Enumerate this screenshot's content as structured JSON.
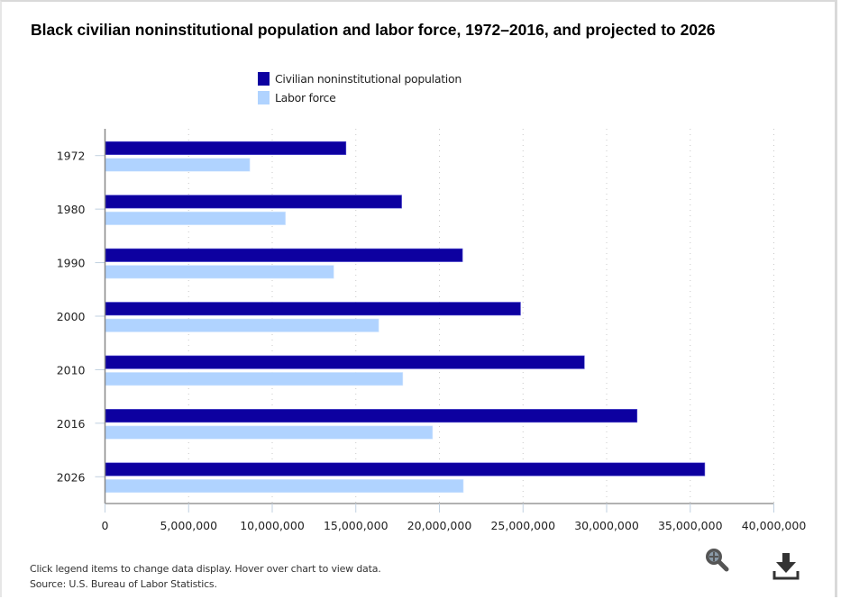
{
  "chart_data": {
    "type": "bar",
    "orientation": "horizontal",
    "title": "Black civilian noninstitutional population and labor force, 1972–2016, and projected to 2026",
    "categories": [
      "1972",
      "1980",
      "1990",
      "2000",
      "2010",
      "2016",
      "2026"
    ],
    "series": [
      {
        "name": "Civilian noninstitutional population",
        "color": "#0d00a0",
        "values": [
          14410000,
          17740000,
          21380000,
          24850000,
          28670000,
          31820000,
          35870000
        ]
      },
      {
        "name": "Labor force",
        "color": "#b0d3ff",
        "values": [
          8660000,
          10790000,
          13680000,
          16370000,
          17810000,
          19590000,
          21430000
        ]
      }
    ],
    "xlabel": "",
    "ylabel": "",
    "xlim": [
      0,
      40000000
    ],
    "x_ticks": [
      0,
      5000000,
      10000000,
      15000000,
      20000000,
      25000000,
      30000000,
      35000000,
      40000000
    ],
    "x_tick_labels": [
      "0",
      "5,000,000",
      "10,000,000",
      "15,000,000",
      "20,000,000",
      "25,000,000",
      "30,000,000",
      "35,000,000",
      "40,000,000"
    ],
    "grid": "vertical dotted",
    "legend_position": "top-center"
  },
  "legend": [
    {
      "label": "Civilian noninstitutional population",
      "color": "#0d00a0"
    },
    {
      "label": "Labor force",
      "color": "#b0d3ff"
    }
  ],
  "footer": {
    "note": "Click legend items to change data display. Hover over chart to view data.",
    "source": "Source: U.S. Bureau of Labor Statistics."
  },
  "toolbar": {
    "zoom_icon": "zoom-in-magnifier-icon",
    "download_icon": "download-icon"
  }
}
